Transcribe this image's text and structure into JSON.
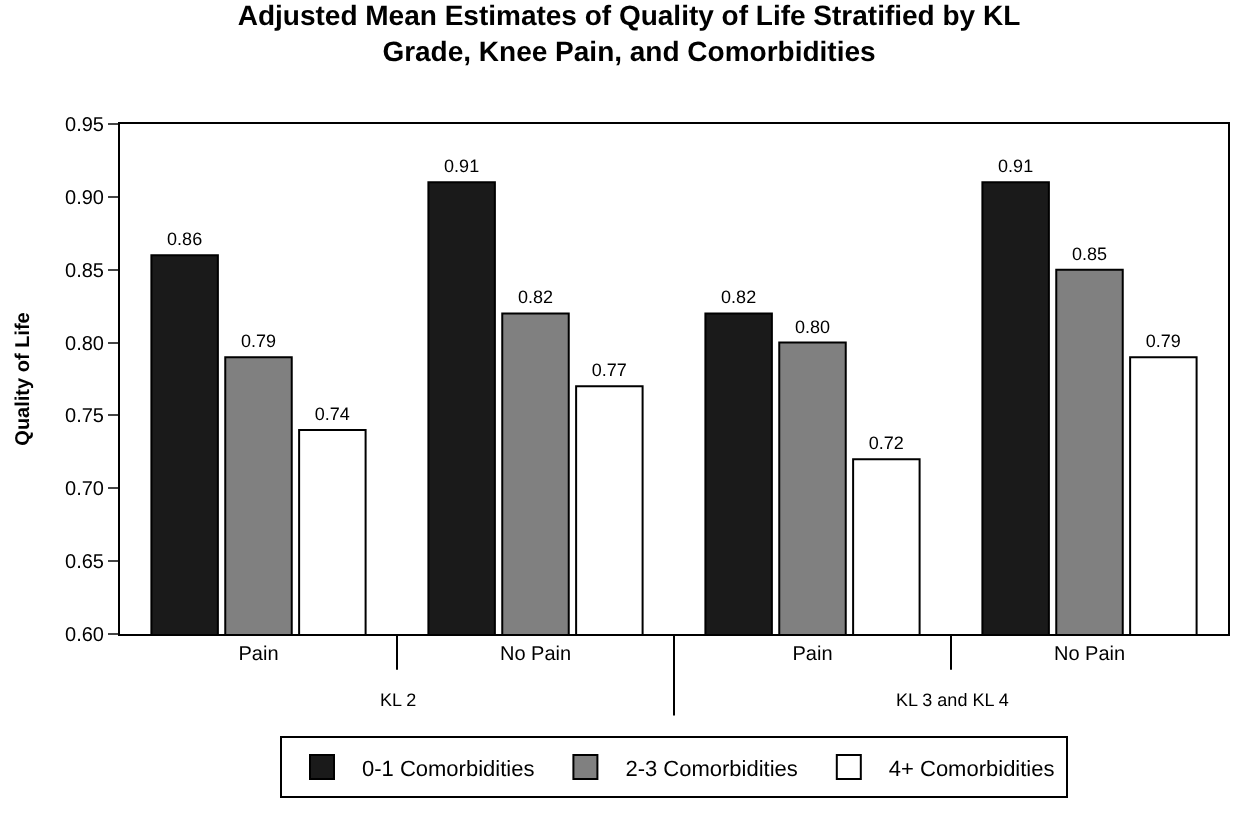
{
  "chart_data": {
    "type": "bar",
    "title": "Adjusted Mean Estimates of Quality of Life Stratified by KL\nGrade, Knee Pain, and Comorbidities",
    "ylabel": "Quality of Life",
    "categories": [
      "Pain",
      "No Pain",
      "Pain",
      "No Pain"
    ],
    "series": [
      {
        "name": "0-1 Comorbidities",
        "color": "#1a1a1a",
        "values": [
          0.86,
          0.91,
          0.82,
          0.91
        ],
        "value_labels": [
          "0.86",
          "0.91",
          "0.82",
          "0.91"
        ]
      },
      {
        "name": "2-3 Comorbidities",
        "color": "#808080",
        "values": [
          0.79,
          0.82,
          0.8,
          0.85
        ],
        "value_labels": [
          "0.79",
          "0.82",
          "0.80",
          "0.85"
        ]
      },
      {
        "name": "4+ Comorbidities",
        "color": "#ffffff",
        "values": [
          0.74,
          0.77,
          0.72,
          0.79
        ],
        "value_labels": [
          "0.74",
          "0.77",
          "0.72",
          "0.79"
        ]
      }
    ],
    "annotations": [
      "KL 2",
      "KL 3 and KL 4"
    ],
    "ylim": [
      0.6,
      0.95
    ],
    "yticks": [
      {
        "value": 0.6,
        "label": "0.60"
      },
      {
        "value": 0.65,
        "label": "0.65"
      },
      {
        "value": 0.7,
        "label": "0.70"
      },
      {
        "value": 0.75,
        "label": "0.75"
      },
      {
        "value": 0.8,
        "label": "0.80"
      },
      {
        "value": 0.85,
        "label": "0.85"
      },
      {
        "value": 0.9,
        "label": "0.90"
      },
      {
        "value": 0.95,
        "label": "0.95"
      }
    ],
    "grid": false,
    "legend": "bottom"
  }
}
